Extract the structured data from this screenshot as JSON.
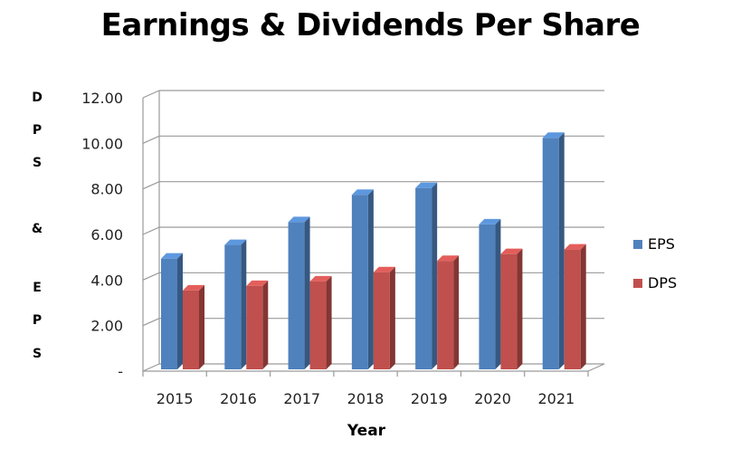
{
  "chart_data": {
    "type": "bar",
    "title": "Earnings & Dividends Per Share",
    "ylabel": "DPS & EPS",
    "ylabel_chars": [
      "D",
      "P",
      "S",
      "&",
      "E",
      "P",
      "S"
    ],
    "xlabel": "Year",
    "categories": [
      "2015",
      "2016",
      "2017",
      "2018",
      "2019",
      "2020",
      "2021"
    ],
    "ylim": [
      0,
      12
    ],
    "yticks": [
      0,
      2,
      4,
      6,
      8,
      10,
      12
    ],
    "ytick_labels": [
      "-",
      "2.00",
      "4.00",
      "6.00",
      "8.00",
      "10.00",
      "12.00"
    ],
    "grid": true,
    "legend_position": "right",
    "series": [
      {
        "name": "EPS",
        "color": "#4f81bd",
        "values": [
          4.9,
          5.5,
          6.5,
          7.7,
          8.0,
          6.4,
          10.2
        ]
      },
      {
        "name": "DPS",
        "color": "#c0504d",
        "values": [
          3.5,
          3.7,
          3.9,
          4.3,
          4.8,
          5.1,
          5.3
        ]
      }
    ]
  }
}
